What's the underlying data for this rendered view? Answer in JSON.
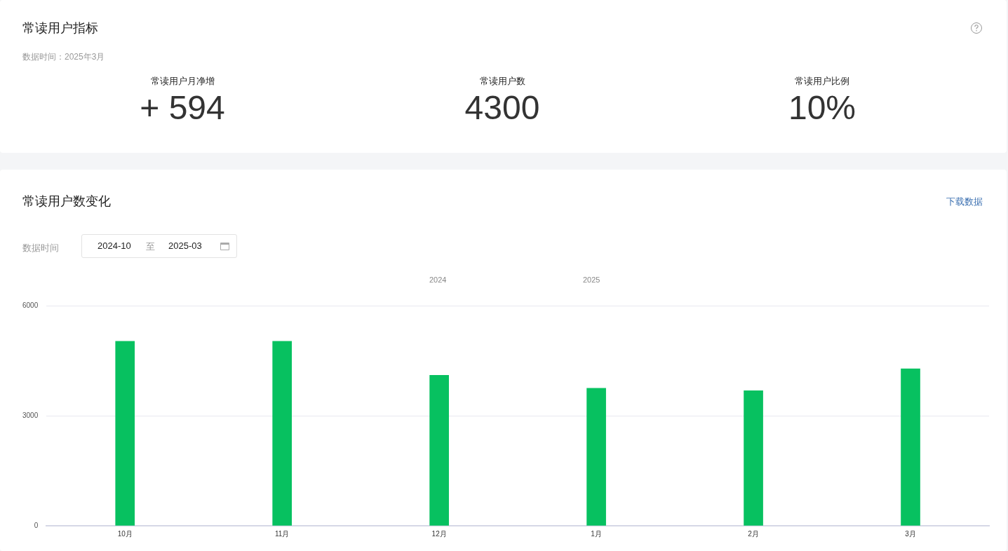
{
  "chart_data": [
    {
      "type": "other",
      "title": "常读用户指标",
      "subtitle": "数据时间：2025年3月",
      "categories": [
        "常读用户月净增",
        "常读用户数",
        "常读用户比例"
      ],
      "value_labels": [
        "+ 594",
        "4300",
        "10%"
      ]
    },
    {
      "type": "bar",
      "title": "常读用户数变化",
      "categories": [
        "10月",
        "11月",
        "12月",
        "1月",
        "2月",
        "3月"
      ],
      "values": [
        5030,
        5030,
        4100,
        3750,
        3680,
        4280
      ],
      "color": "#07c160",
      "ylim": [
        0,
        6000
      ],
      "yticks": [
        0,
        3000,
        6000
      ],
      "grid": "y",
      "annotations": [
        "下载数据",
        "数据时间",
        "2024-10",
        "至",
        "2025-03",
        "2024",
        "2025"
      ]
    }
  ]
}
